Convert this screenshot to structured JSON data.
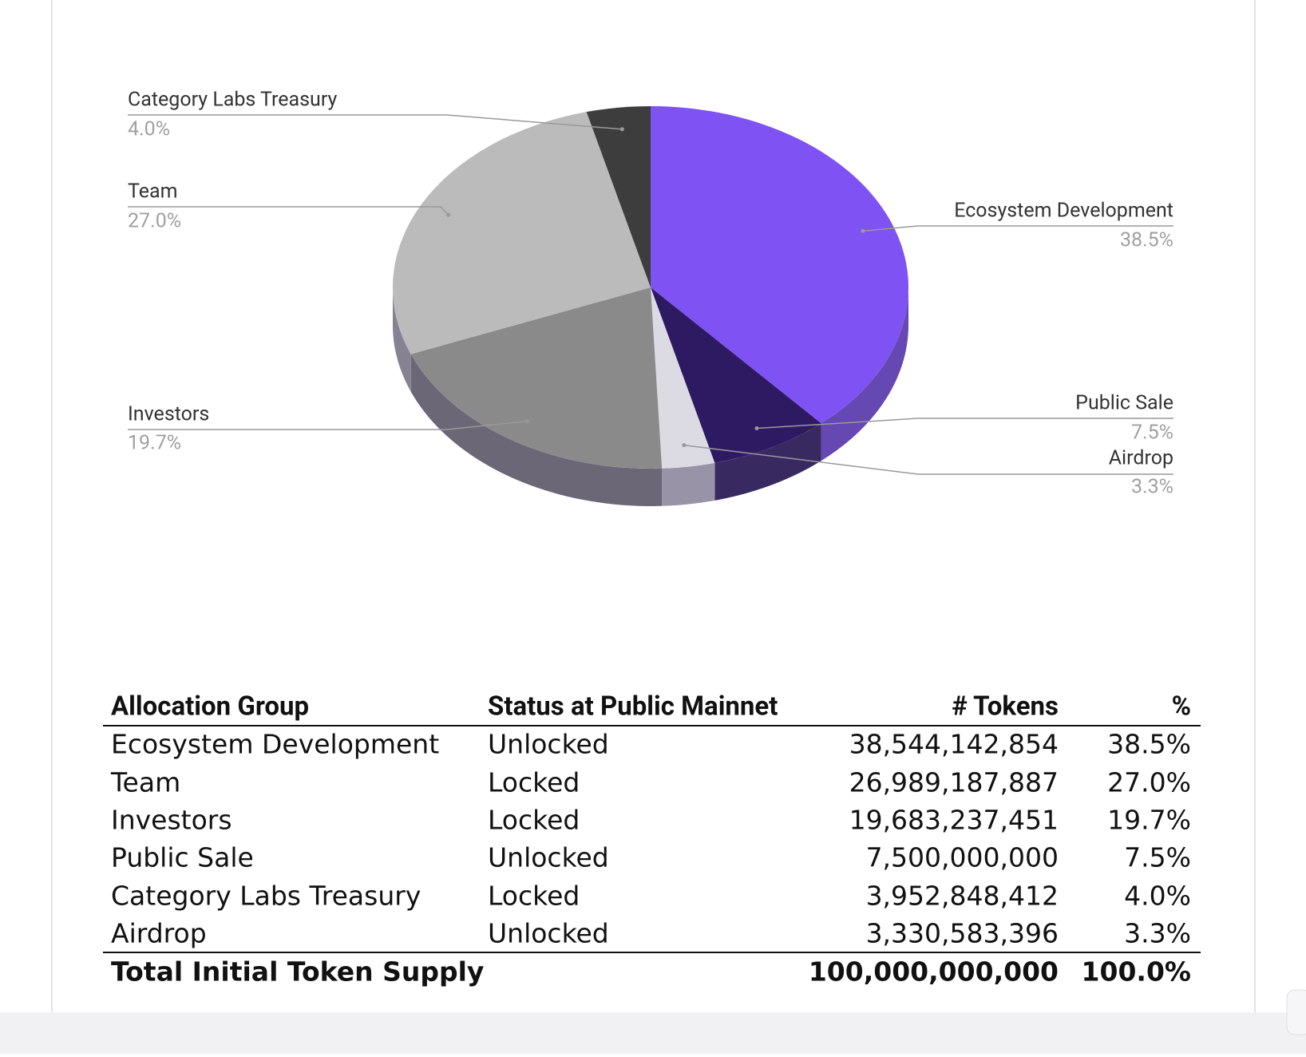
{
  "chart_data": {
    "type": "pie3d",
    "categories": [
      "Ecosystem Development",
      "Public Sale",
      "Airdrop",
      "Investors",
      "Team",
      "Category Labs Treasury"
    ],
    "values": [
      38.5,
      7.5,
      3.3,
      19.7,
      27.0,
      4.0
    ],
    "value_labels": [
      "38.5%",
      "7.5%",
      "3.3%",
      "19.7%",
      "27.0%",
      "4.0%"
    ],
    "colors": [
      "#7f52f4",
      "#2e1a63",
      "#dcdbe3",
      "#8a8a8a",
      "#bbbbbb",
      "#3d3d3d"
    ]
  },
  "table": {
    "header": [
      "Allocation Group",
      "Status at Public Mainnet",
      "# Tokens",
      "%"
    ],
    "rows": [
      [
        "Ecosystem Development",
        "Unlocked",
        "38,544,142,854",
        "38.5%"
      ],
      [
        "Team",
        "Locked",
        "26,989,187,887",
        "27.0%"
      ],
      [
        "Investors",
        "Locked",
        "19,683,237,451",
        "19.7%"
      ],
      [
        "Public Sale",
        "Unlocked",
        "7,500,000,000",
        "7.5%"
      ],
      [
        "Category Labs Treasury",
        "Locked",
        "3,952,848,412",
        "4.0%"
      ],
      [
        "Airdrop",
        "Unlocked",
        "3,330,583,396",
        "3.3%"
      ]
    ],
    "total": {
      "label": "Total Initial Token Supply",
      "tokens": "100,000,000,000",
      "percent": "100.0%"
    }
  }
}
